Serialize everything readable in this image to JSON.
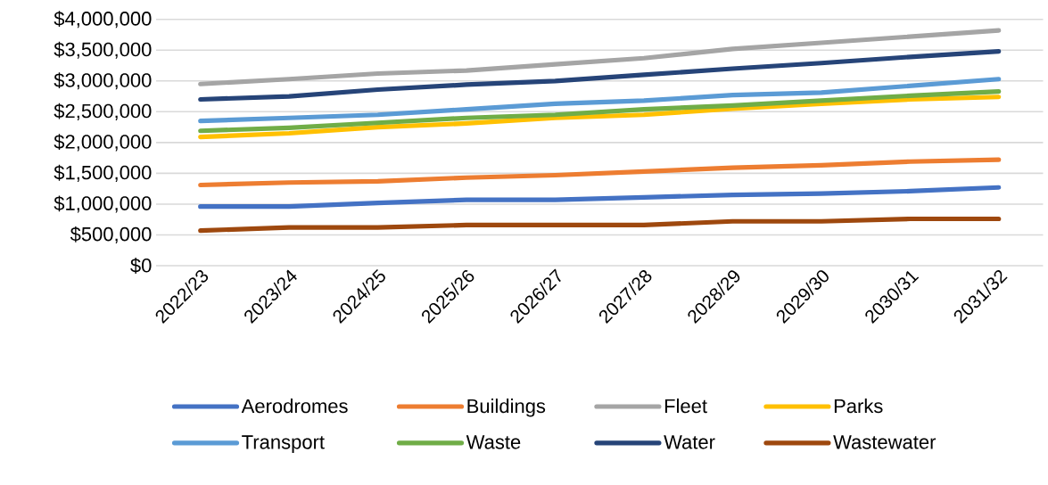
{
  "chart_data": {
    "type": "line",
    "categories": [
      "2022/23",
      "2023/24",
      "2024/25",
      "2025/26",
      "2026/27",
      "2027/28",
      "2028/29",
      "2029/30",
      "2030/31",
      "2031/32"
    ],
    "series": [
      {
        "name": "Aerodromes",
        "color": "#4472c4",
        "values": [
          960000,
          960000,
          1020000,
          1070000,
          1070000,
          1110000,
          1150000,
          1170000,
          1210000,
          1270000
        ]
      },
      {
        "name": "Buildings",
        "color": "#ed7d31",
        "values": [
          1310000,
          1350000,
          1370000,
          1430000,
          1470000,
          1530000,
          1590000,
          1630000,
          1690000,
          1720000
        ]
      },
      {
        "name": "Fleet",
        "color": "#a5a5a5",
        "values": [
          2950000,
          3030000,
          3120000,
          3170000,
          3270000,
          3370000,
          3520000,
          3620000,
          3720000,
          3820000
        ]
      },
      {
        "name": "Parks",
        "color": "#ffc000",
        "values": [
          2090000,
          2150000,
          2250000,
          2310000,
          2400000,
          2450000,
          2550000,
          2630000,
          2700000,
          2740000
        ]
      },
      {
        "name": "Transport",
        "color": "#5b9bd5",
        "values": [
          2350000,
          2400000,
          2450000,
          2540000,
          2630000,
          2680000,
          2770000,
          2810000,
          2920000,
          3030000
        ]
      },
      {
        "name": "Waste",
        "color": "#70ad47",
        "values": [
          2190000,
          2240000,
          2320000,
          2400000,
          2450000,
          2540000,
          2600000,
          2680000,
          2760000,
          2830000
        ]
      },
      {
        "name": "Water",
        "color": "#264478",
        "values": [
          2700000,
          2750000,
          2860000,
          2940000,
          3000000,
          3100000,
          3200000,
          3290000,
          3390000,
          3480000
        ]
      },
      {
        "name": "Wastewater",
        "color": "#9e480e",
        "values": [
          570000,
          620000,
          620000,
          660000,
          660000,
          660000,
          720000,
          720000,
          760000,
          760000
        ]
      }
    ],
    "ylim": [
      0,
      4000000
    ],
    "yticks": [
      {
        "value": 0,
        "label": "$0"
      },
      {
        "value": 500000,
        "label": "$500,000"
      },
      {
        "value": 1000000,
        "label": "$1,000,000"
      },
      {
        "value": 1500000,
        "label": "$1,500,000"
      },
      {
        "value": 2000000,
        "label": "$2,000,000"
      },
      {
        "value": 2500000,
        "label": "$2,500,000"
      },
      {
        "value": 3000000,
        "label": "$3,000,000"
      },
      {
        "value": 3500000,
        "label": "$3,500,000"
      },
      {
        "value": 4000000,
        "label": "$4,000,000"
      }
    ],
    "grid": "y",
    "legend": "bottom",
    "marker": "none",
    "line_style": "solid"
  }
}
